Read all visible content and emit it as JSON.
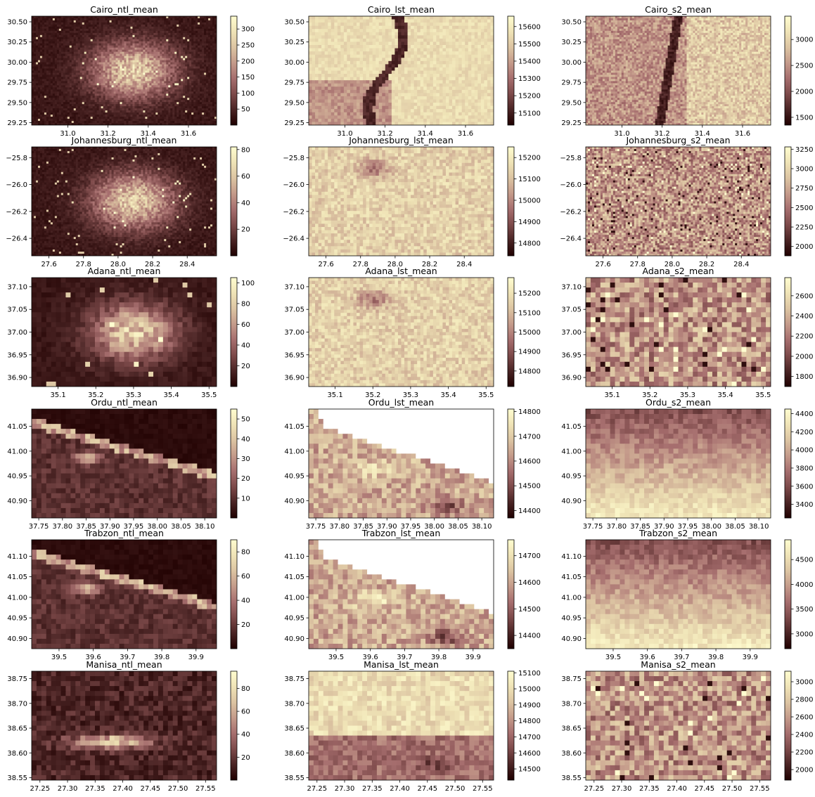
{
  "chart_data": [
    {
      "type": "heatmap",
      "title": "Cairo_ntl_mean",
      "x_ticks": [
        "31.0",
        "31.2",
        "31.4",
        "31.6"
      ],
      "x_tick_values": [
        31.0,
        31.2,
        31.4,
        31.6
      ],
      "xlim": [
        30.82,
        31.74
      ],
      "y_ticks": [
        "30.50",
        "30.25",
        "30.00",
        "29.75",
        "29.50",
        "29.25"
      ],
      "y_tick_values": [
        30.5,
        30.25,
        30.0,
        29.75,
        29.5,
        29.25
      ],
      "ylim": [
        29.22,
        30.57
      ],
      "colorbar_ticks": [
        "50",
        "100",
        "150",
        "200",
        "250",
        "300"
      ],
      "colorbar_tick_values": [
        50,
        100,
        150,
        200,
        250,
        300
      ],
      "clim": [
        0,
        340
      ],
      "pattern": "bright-city",
      "resolution": "fine",
      "mask": "none"
    },
    {
      "type": "heatmap",
      "title": "Cairo_lst_mean",
      "x_ticks": [
        "31.0",
        "31.2",
        "31.4",
        "31.6"
      ],
      "x_tick_values": [
        31.0,
        31.2,
        31.4,
        31.6
      ],
      "xlim": [
        30.82,
        31.74
      ],
      "y_ticks": [
        "30.50",
        "30.25",
        "30.00",
        "29.75",
        "29.50",
        "29.25"
      ],
      "y_tick_values": [
        30.5,
        30.25,
        30.0,
        29.75,
        29.5,
        29.25
      ],
      "ylim": [
        29.22,
        30.57
      ],
      "colorbar_ticks": [
        "15100",
        "15200",
        "15300",
        "15400",
        "15500",
        "15600"
      ],
      "colorbar_tick_values": [
        15100,
        15200,
        15300,
        15400,
        15500,
        15600
      ],
      "clim": [
        15030,
        15660
      ],
      "pattern": "river-light",
      "resolution": "medium",
      "mask": "none"
    },
    {
      "type": "heatmap",
      "title": "Cairo_s2_mean",
      "x_ticks": [
        "31.0",
        "31.2",
        "31.4",
        "31.6"
      ],
      "x_tick_values": [
        31.0,
        31.2,
        31.4,
        31.6
      ],
      "xlim": [
        30.82,
        31.74
      ],
      "y_ticks": [
        "30.50",
        "30.25",
        "30.00",
        "29.75",
        "29.50",
        "29.25"
      ],
      "y_tick_values": [
        30.5,
        30.25,
        30.0,
        29.75,
        29.5,
        29.25
      ],
      "ylim": [
        29.22,
        30.57
      ],
      "colorbar_ticks": [
        "1500",
        "2000",
        "2500",
        "3000"
      ],
      "colorbar_tick_values": [
        1500,
        2000,
        2500,
        3000
      ],
      "clim": [
        1350,
        3450
      ],
      "pattern": "river-mid",
      "resolution": "fine",
      "mask": "none"
    },
    {
      "type": "heatmap",
      "title": "Johannesburg_ntl_mean",
      "x_ticks": [
        "27.6",
        "27.8",
        "28.0",
        "28.2",
        "28.4"
      ],
      "x_tick_values": [
        27.6,
        27.8,
        28.0,
        28.2,
        28.4
      ],
      "xlim": [
        27.5,
        28.57
      ],
      "y_ticks": [
        "−25.8",
        "−26.0",
        "−26.2",
        "−26.4"
      ],
      "y_tick_values": [
        -25.8,
        -26.0,
        -26.2,
        -26.4
      ],
      "ylim": [
        -26.53,
        -25.72
      ],
      "colorbar_ticks": [
        "20",
        "40",
        "60",
        "80"
      ],
      "colorbar_tick_values": [
        20,
        40,
        60,
        80
      ],
      "clim": [
        0,
        82
      ],
      "pattern": "bright-city",
      "resolution": "fine",
      "mask": "none"
    },
    {
      "type": "heatmap",
      "title": "Johannesburg_lst_mean",
      "x_ticks": [
        "27.6",
        "27.8",
        "28.0",
        "28.2",
        "28.4"
      ],
      "x_tick_values": [
        27.6,
        27.8,
        28.0,
        28.2,
        28.4
      ],
      "xlim": [
        27.5,
        28.57
      ],
      "y_ticks": [
        "−25.8",
        "−26.0",
        "−26.2",
        "−26.4"
      ],
      "y_tick_values": [
        -25.8,
        -26.0,
        -26.2,
        -26.4
      ],
      "ylim": [
        -26.53,
        -25.72
      ],
      "colorbar_ticks": [
        "14800",
        "14900",
        "15000",
        "15100",
        "15200"
      ],
      "colorbar_tick_values": [
        14800,
        14900,
        15000,
        15100,
        15200
      ],
      "clim": [
        14740,
        15250
      ],
      "pattern": "uniform-light",
      "resolution": "medium",
      "mask": "none"
    },
    {
      "type": "heatmap",
      "title": "Johannesburg_s2_mean",
      "x_ticks": [
        "27.6",
        "27.8",
        "28.0",
        "28.2",
        "28.4"
      ],
      "x_tick_values": [
        27.6,
        27.8,
        28.0,
        28.2,
        28.4
      ],
      "xlim": [
        27.5,
        28.57
      ],
      "y_ticks": [
        "−25.8",
        "−26.0",
        "−26.2",
        "−26.4"
      ],
      "y_tick_values": [
        -25.8,
        -26.0,
        -26.2,
        -26.4
      ],
      "ylim": [
        -26.53,
        -25.72
      ],
      "colorbar_ticks": [
        "2000",
        "2250",
        "2500",
        "2750",
        "3000",
        "3250"
      ],
      "colorbar_tick_values": [
        2000,
        2250,
        2500,
        2750,
        3000,
        3250
      ],
      "clim": [
        1880,
        3280
      ],
      "pattern": "noisy-mid",
      "resolution": "fine",
      "mask": "none"
    },
    {
      "type": "heatmap",
      "title": "Adana_ntl_mean",
      "x_ticks": [
        "35.1",
        "35.2",
        "35.3",
        "35.4",
        "35.5"
      ],
      "x_tick_values": [
        35.1,
        35.2,
        35.3,
        35.4,
        35.5
      ],
      "xlim": [
        35.03,
        35.52
      ],
      "y_ticks": [
        "37.10",
        "37.05",
        "37.00",
        "36.95",
        "36.90"
      ],
      "y_tick_values": [
        37.1,
        37.05,
        37.0,
        36.95,
        36.9
      ],
      "ylim": [
        36.88,
        37.12
      ],
      "colorbar_ticks": [
        "20",
        "40",
        "60",
        "80",
        "100"
      ],
      "colorbar_tick_values": [
        20,
        40,
        60,
        80,
        100
      ],
      "clim": [
        0,
        105
      ],
      "pattern": "bright-city",
      "resolution": "coarse",
      "mask": "none"
    },
    {
      "type": "heatmap",
      "title": "Adana_lst_mean",
      "x_ticks": [
        "35.1",
        "35.2",
        "35.3",
        "35.4",
        "35.5"
      ],
      "x_tick_values": [
        35.1,
        35.2,
        35.3,
        35.4,
        35.5
      ],
      "xlim": [
        35.03,
        35.52
      ],
      "y_ticks": [
        "37.10",
        "37.05",
        "37.00",
        "36.95",
        "36.90"
      ],
      "y_tick_values": [
        37.1,
        37.05,
        37.0,
        36.95,
        36.9
      ],
      "ylim": [
        36.88,
        37.12
      ],
      "colorbar_ticks": [
        "14800",
        "14900",
        "15000",
        "15100",
        "15200"
      ],
      "colorbar_tick_values": [
        14800,
        14900,
        15000,
        15100,
        15200
      ],
      "clim": [
        14720,
        15280
      ],
      "pattern": "uniform-light",
      "resolution": "medium",
      "mask": "none"
    },
    {
      "type": "heatmap",
      "title": "Adana_s2_mean",
      "x_ticks": [
        "35.1",
        "35.2",
        "35.3",
        "35.4",
        "35.5"
      ],
      "x_tick_values": [
        35.1,
        35.2,
        35.3,
        35.4,
        35.5
      ],
      "xlim": [
        35.03,
        35.52
      ],
      "y_ticks": [
        "37.10",
        "37.05",
        "37.00",
        "36.95",
        "36.90"
      ],
      "y_tick_values": [
        37.1,
        37.05,
        37.0,
        36.95,
        36.9
      ],
      "ylim": [
        36.88,
        37.12
      ],
      "colorbar_ticks": [
        "1800",
        "2000",
        "2200",
        "2400",
        "2600"
      ],
      "colorbar_tick_values": [
        1800,
        2000,
        2200,
        2400,
        2600
      ],
      "clim": [
        1700,
        2780
      ],
      "pattern": "noisy-mid",
      "resolution": "coarse",
      "mask": "none"
    },
    {
      "type": "heatmap",
      "title": "Ordu_ntl_mean",
      "x_ticks": [
        "37.75",
        "37.80",
        "37.85",
        "37.90",
        "37.95",
        "38.00",
        "38.05",
        "38.10"
      ],
      "x_tick_values": [
        37.75,
        37.8,
        37.85,
        37.9,
        37.95,
        38.0,
        38.05,
        38.1
      ],
      "xlim": [
        37.735,
        38.125
      ],
      "y_ticks": [
        "41.05",
        "41.00",
        "40.95",
        "40.90"
      ],
      "y_tick_values": [
        41.05,
        41.0,
        40.95,
        40.9
      ],
      "ylim": [
        40.865,
        41.085
      ],
      "colorbar_ticks": [
        "10",
        "20",
        "30",
        "40",
        "50"
      ],
      "colorbar_tick_values": [
        10,
        20,
        30,
        40,
        50
      ],
      "clim": [
        0,
        55
      ],
      "pattern": "coast-line",
      "resolution": "coarse",
      "mask": "none"
    },
    {
      "type": "heatmap",
      "title": "Ordu_lst_mean",
      "x_ticks": [
        "37.75",
        "37.80",
        "37.85",
        "37.90",
        "37.95",
        "38.00",
        "38.05",
        "38.10"
      ],
      "x_tick_values": [
        37.75,
        37.8,
        37.85,
        37.9,
        37.95,
        38.0,
        38.05,
        38.1
      ],
      "xlim": [
        37.735,
        38.125
      ],
      "y_ticks": [
        "41.05",
        "41.00",
        "40.95",
        "40.90"
      ],
      "y_tick_values": [
        41.05,
        41.0,
        40.95,
        40.9
      ],
      "ylim": [
        40.865,
        41.085
      ],
      "colorbar_ticks": [
        "14400",
        "14500",
        "14600",
        "14700",
        "14800"
      ],
      "colorbar_tick_values": [
        14400,
        14500,
        14600,
        14700,
        14800
      ],
      "clim": [
        14370,
        14810
      ],
      "pattern": "land-mid",
      "resolution": "coarse",
      "mask": "sea"
    },
    {
      "type": "heatmap",
      "title": "Ordu_s2_mean",
      "x_ticks": [
        "37.75",
        "37.80",
        "37.85",
        "37.90",
        "37.95",
        "38.00",
        "38.05",
        "38.10"
      ],
      "x_tick_values": [
        37.75,
        37.8,
        37.85,
        37.9,
        37.95,
        38.0,
        38.05,
        38.1
      ],
      "xlim": [
        37.735,
        38.125
      ],
      "y_ticks": [
        "41.05",
        "41.00",
        "40.95",
        "40.90"
      ],
      "y_tick_values": [
        41.05,
        41.0,
        40.95,
        40.9
      ],
      "ylim": [
        40.865,
        41.085
      ],
      "colorbar_ticks": [
        "3400",
        "3600",
        "3800",
        "4000",
        "4200",
        "4400"
      ],
      "colorbar_tick_values": [
        3400,
        3600,
        3800,
        4000,
        4200,
        4400
      ],
      "clim": [
        3250,
        4450
      ],
      "pattern": "gradient-up",
      "resolution": "coarse",
      "mask": "none"
    },
    {
      "type": "heatmap",
      "title": "Trabzon_ntl_mean",
      "x_ticks": [
        "39.5",
        "39.6",
        "39.7",
        "39.8",
        "39.9"
      ],
      "x_tick_values": [
        39.5,
        39.6,
        39.7,
        39.8,
        39.9
      ],
      "xlim": [
        39.42,
        39.96
      ],
      "y_ticks": [
        "41.10",
        "41.05",
        "41.00",
        "40.95",
        "40.90"
      ],
      "y_tick_values": [
        41.1,
        41.05,
        41.0,
        40.95,
        40.9
      ],
      "ylim": [
        40.875,
        41.14
      ],
      "colorbar_ticks": [
        "20",
        "40",
        "60",
        "80"
      ],
      "colorbar_tick_values": [
        20,
        40,
        60,
        80
      ],
      "clim": [
        0,
        90
      ],
      "pattern": "coast-line",
      "resolution": "coarse",
      "mask": "none"
    },
    {
      "type": "heatmap",
      "title": "Trabzon_lst_mean",
      "x_ticks": [
        "39.5",
        "39.6",
        "39.7",
        "39.8",
        "39.9"
      ],
      "x_tick_values": [
        39.5,
        39.6,
        39.7,
        39.8,
        39.9
      ],
      "xlim": [
        39.42,
        39.96
      ],
      "y_ticks": [
        "41.10",
        "41.05",
        "41.00",
        "40.95",
        "40.90"
      ],
      "y_tick_values": [
        41.1,
        41.05,
        41.0,
        40.95,
        40.9
      ],
      "ylim": [
        40.875,
        41.14
      ],
      "colorbar_ticks": [
        "14400",
        "14500",
        "14600",
        "14700"
      ],
      "colorbar_tick_values": [
        14400,
        14500,
        14600,
        14700
      ],
      "clim": [
        14350,
        14760
      ],
      "pattern": "land-mid",
      "resolution": "coarse",
      "mask": "sea"
    },
    {
      "type": "heatmap",
      "title": "Trabzon_s2_mean",
      "x_ticks": [
        "39.5",
        "39.6",
        "39.7",
        "39.8",
        "39.9"
      ],
      "x_tick_values": [
        39.5,
        39.6,
        39.7,
        39.8,
        39.9
      ],
      "xlim": [
        39.42,
        39.96
      ],
      "y_ticks": [
        "41.10",
        "41.05",
        "41.00",
        "40.95",
        "40.90"
      ],
      "y_tick_values": [
        41.1,
        41.05,
        41.0,
        40.95,
        40.9
      ],
      "ylim": [
        40.875,
        41.14
      ],
      "colorbar_ticks": [
        "3000",
        "3500",
        "4000",
        "4500"
      ],
      "colorbar_tick_values": [
        3000,
        3500,
        4000,
        4500
      ],
      "clim": [
        2700,
        4900
      ],
      "pattern": "gradient-up",
      "resolution": "coarse",
      "mask": "none"
    },
    {
      "type": "heatmap",
      "title": "Manisa_ntl_mean",
      "x_ticks": [
        "27.25",
        "27.30",
        "27.35",
        "27.40",
        "27.45",
        "27.50",
        "27.55"
      ],
      "x_tick_values": [
        27.25,
        27.3,
        27.35,
        27.4,
        27.45,
        27.5,
        27.55
      ],
      "xlim": [
        27.235,
        27.57
      ],
      "y_ticks": [
        "38.75",
        "38.70",
        "38.65",
        "38.60",
        "38.55"
      ],
      "y_tick_values": [
        38.75,
        38.7,
        38.65,
        38.6,
        38.55
      ],
      "ylim": [
        38.545,
        38.765
      ],
      "colorbar_ticks": [
        "20",
        "40",
        "60",
        "80"
      ],
      "colorbar_tick_values": [
        20,
        40,
        60,
        80
      ],
      "clim": [
        0,
        95
      ],
      "pattern": "bright-band",
      "resolution": "coarse",
      "mask": "none"
    },
    {
      "type": "heatmap",
      "title": "Manisa_lst_mean",
      "x_ticks": [
        "27.25",
        "27.30",
        "27.35",
        "27.40",
        "27.45",
        "27.50",
        "27.55"
      ],
      "x_tick_values": [
        27.25,
        27.3,
        27.35,
        27.4,
        27.45,
        27.5,
        27.55
      ],
      "xlim": [
        27.235,
        27.57
      ],
      "y_ticks": [
        "38.75",
        "38.70",
        "38.65",
        "38.60",
        "38.55"
      ],
      "y_tick_values": [
        38.75,
        38.7,
        38.65,
        38.6,
        38.55
      ],
      "ylim": [
        38.545,
        38.765
      ],
      "colorbar_ticks": [
        "14500",
        "14600",
        "14700",
        "14800",
        "14900",
        "15000",
        "15100"
      ],
      "colorbar_tick_values": [
        14500,
        14600,
        14700,
        14800,
        14900,
        15000,
        15100
      ],
      "clim": [
        14430,
        15110
      ],
      "pattern": "light-top-dark-bottom",
      "resolution": "coarse",
      "mask": "none"
    },
    {
      "type": "heatmap",
      "title": "Manisa_s2_mean",
      "x_ticks": [
        "27.25",
        "27.30",
        "27.35",
        "27.40",
        "27.45",
        "27.50",
        "27.55"
      ],
      "x_tick_values": [
        27.25,
        27.3,
        27.35,
        27.4,
        27.45,
        27.5,
        27.55
      ],
      "xlim": [
        27.235,
        27.57
      ],
      "y_ticks": [
        "38.75",
        "38.70",
        "38.65",
        "38.60",
        "38.55"
      ],
      "y_tick_values": [
        38.75,
        38.7,
        38.65,
        38.6,
        38.55
      ],
      "ylim": [
        38.545,
        38.765
      ],
      "colorbar_ticks": [
        "2000",
        "2200",
        "2400",
        "2600",
        "2800",
        "3000"
      ],
      "colorbar_tick_values": [
        2000,
        2200,
        2400,
        2600,
        2800,
        3000
      ],
      "clim": [
        1880,
        3120
      ],
      "pattern": "noisy-mid",
      "resolution": "coarse",
      "mask": "none"
    }
  ],
  "colormap": [
    "#1f0000",
    "#4a2424",
    "#7d4a4a",
    "#a66e6e",
    "#c49a8a",
    "#dcc4a2",
    "#efe3b6",
    "#fffdd0"
  ]
}
